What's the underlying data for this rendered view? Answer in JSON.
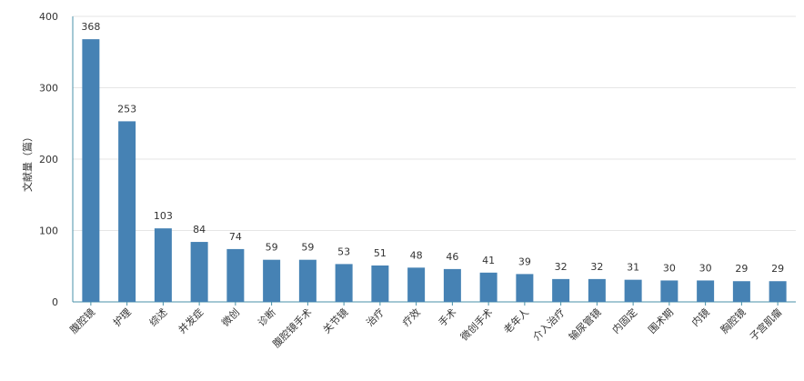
{
  "chart_data": {
    "type": "bar",
    "title": "",
    "xlabel": "",
    "ylabel": "文献量（篇）",
    "ylim": [
      0,
      400
    ],
    "yticks": [
      0,
      100,
      200,
      300,
      400
    ],
    "grid": true,
    "legend": "none",
    "bar_color": "#4682b4",
    "categories": [
      "腹腔镜",
      "护理",
      "综述",
      "并发症",
      "微创",
      "诊断",
      "腹腔镜手术",
      "关节镜",
      "治疗",
      "疗效",
      "手术",
      "微创手术",
      "老年人",
      "介入治疗",
      "输尿管镜",
      "内固定",
      "围术期",
      "内镜",
      "胸腔镜",
      "子宫肌瘤"
    ],
    "values": [
      368,
      253,
      103,
      84,
      74,
      59,
      59,
      53,
      51,
      48,
      46,
      41,
      39,
      32,
      32,
      31,
      30,
      30,
      29,
      29
    ]
  }
}
